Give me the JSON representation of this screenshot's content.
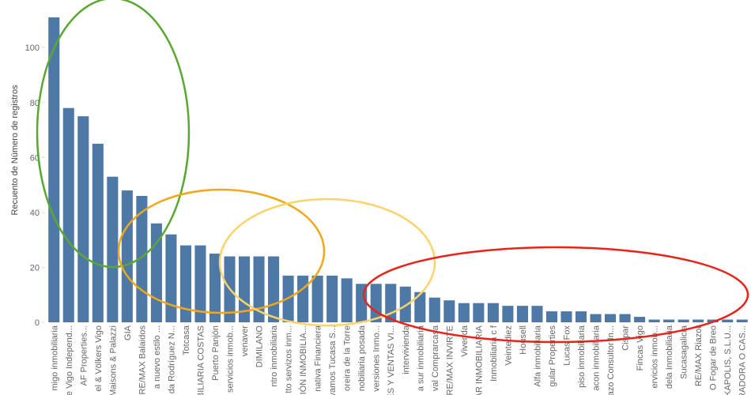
{
  "chart_data": {
    "type": "bar",
    "y_label": "Recuento de Número de registros",
    "categories": [
      "migo inmobiliaria",
      "e Vigo Independ...",
      "AF Properties...",
      "el & Völkers Vigo",
      "Maisons & Palazzi",
      "GIA",
      "RE/MAX Balaidos",
      "a nuevo estilo ...",
      "da Rodríguez N...",
      "Totcasa",
      "BILIARIA COSTAS",
      "Puerto Panjón",
      "servicios inmob...",
      "venaver",
      "DIMILANO",
      "ntro inmobiliaria",
      "tto servizos inm...",
      "IÓN INMOBILIA...",
      "nativa Financiera",
      "vamos Tucasa S...",
      "oreira de la Torre",
      "nobiliaria posada",
      "versiones Inmo...",
      "ES Y VENTAS VI...",
      "intervivienda",
      "a sur inmobiliaria",
      "val Comprarcasa",
      "RE/MAX INVIRTE",
      "Vivenda",
      "AR INMOBILIARIA",
      "Inmobiliaria c f",
      "Veintediez",
      "Housell",
      "Alfa inmobiliaria",
      "gular Properties",
      "Lucas Fox",
      "piso inmobiliaria",
      "acon inmobiliaria",
      "azo Consultor In...",
      "Cispar",
      "Fincas Vigo",
      "ervicios inmob...",
      "dela Inmobiliaria",
      "Sucasagalicia",
      "RE/MAX Riazor",
      "O Fogar de Breo",
      "SKAPOLIS, S.L.U...",
      "TRADORA O CAS..."
    ],
    "values": [
      111,
      78,
      75,
      65,
      53,
      48,
      46,
      36,
      32,
      28,
      28,
      25,
      24,
      24,
      24,
      24,
      17,
      17,
      17,
      17,
      16,
      14,
      14,
      14,
      13,
      11,
      9,
      8,
      7,
      7,
      7,
      6,
      6,
      6,
      4,
      4,
      4,
      3,
      3,
      3,
      2,
      1,
      1,
      1,
      1,
      1,
      1,
      1
    ],
    "color": "#4e79a7",
    "ylim": [
      0,
      113
    ],
    "yticks": [
      0,
      20,
      40,
      60,
      80,
      100
    ]
  }
}
